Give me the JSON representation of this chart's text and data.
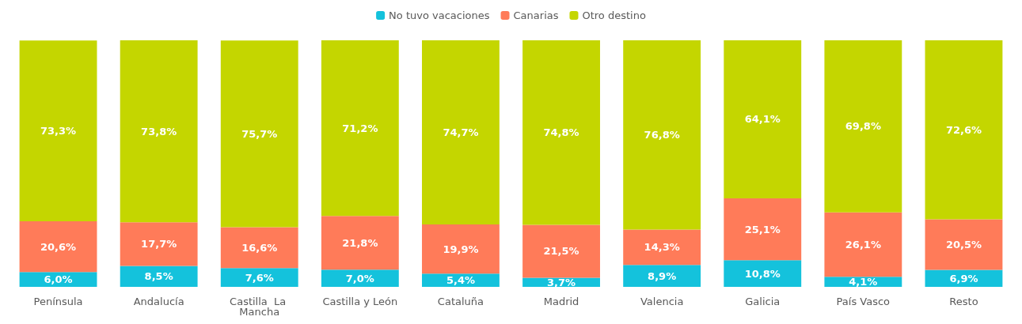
{
  "chart_data": {
    "type": "bar",
    "stacked": true,
    "legend": "top",
    "categories": [
      "Península",
      "Andalucía",
      "Castilla  La Mancha",
      "Castilla y León",
      "Cataluña",
      "Madrid",
      "Valencia",
      "Galicia",
      "País Vasco",
      "Resto"
    ],
    "series": [
      {
        "name": "No tuvo vacaciones",
        "color": "#14c2dc",
        "values": [
          6.0,
          8.5,
          7.6,
          7.0,
          5.4,
          3.7,
          8.9,
          10.8,
          4.1,
          6.9
        ],
        "value_labels": [
          "6,0%",
          "8,5%",
          "7,6%",
          "7,0%",
          "5,4%",
          "3,7%",
          "8,9%",
          "10,8%",
          "4,1%",
          "6,9%"
        ]
      },
      {
        "name": "Canarias",
        "color": "#ff7b59",
        "values": [
          20.6,
          17.7,
          16.6,
          21.8,
          19.9,
          21.5,
          14.3,
          25.1,
          26.1,
          20.5
        ],
        "value_labels": [
          "20,6%",
          "17,7%",
          "16,6%",
          "21,8%",
          "19,9%",
          "21,5%",
          "14,3%",
          "25,1%",
          "26,1%",
          "20,5%"
        ]
      },
      {
        "name": "Otro destino",
        "color": "#c4d600",
        "values": [
          73.3,
          73.8,
          75.7,
          71.2,
          74.7,
          74.8,
          76.8,
          64.1,
          69.8,
          72.6
        ],
        "value_labels": [
          "73,3%",
          "73,8%",
          "75,7%",
          "71,2%",
          "74,7%",
          "74,8%",
          "76,8%",
          "64,1%",
          "69,8%",
          "72,6%"
        ]
      }
    ]
  }
}
